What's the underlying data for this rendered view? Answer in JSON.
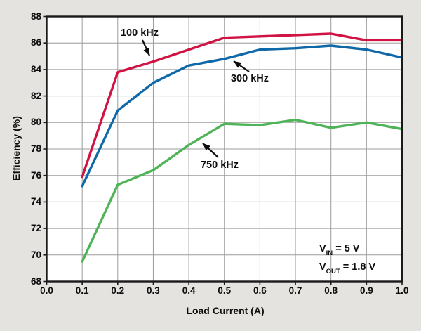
{
  "chart_data": {
    "type": "line",
    "title": "",
    "xlabel": "Load Current (A)",
    "ylabel": "Efficiency (%)",
    "xlim": [
      0.0,
      1.0
    ],
    "ylim": [
      68,
      88
    ],
    "grid": true,
    "legend_position": "inline-annotations-with-arrows",
    "x": [
      0.1,
      0.2,
      0.3,
      0.4,
      0.5,
      0.6,
      0.7,
      0.8,
      0.9,
      1.0
    ],
    "series": [
      {
        "name": "100 kHz",
        "color": "#d01343",
        "values": [
          75.9,
          83.8,
          84.6,
          85.5,
          86.4,
          86.5,
          86.6,
          86.7,
          86.2,
          86.2
        ]
      },
      {
        "name": "300 kHz",
        "color": "#0f69a9",
        "values": [
          75.2,
          80.9,
          83.0,
          84.3,
          84.8,
          85.5,
          85.6,
          85.8,
          85.5,
          84.9
        ]
      },
      {
        "name": "750 kHz",
        "color": "#4fb457",
        "values": [
          69.5,
          75.3,
          76.4,
          78.3,
          79.9,
          79.8,
          80.2,
          79.6,
          80.0,
          79.5
        ]
      }
    ],
    "xticks": [
      0.0,
      0.1,
      0.2,
      0.3,
      0.4,
      0.5,
      0.6,
      0.7,
      0.8,
      0.9,
      1.0
    ],
    "xtick_labels": [
      "0.0",
      "0.1",
      "0.2",
      "0.3",
      "0.4",
      "0.5",
      "0.6",
      "0.7",
      "0.8",
      "0.9",
      "1.0"
    ],
    "yticks": [
      68,
      70,
      72,
      74,
      76,
      78,
      80,
      82,
      84,
      86,
      88
    ],
    "ytick_labels": [
      "68",
      "70",
      "72",
      "74",
      "76",
      "78",
      "80",
      "82",
      "84",
      "86",
      "88"
    ]
  },
  "annotations": {
    "curve_100": "100 kHz",
    "curve_300": "300 kHz",
    "curve_750": "750 kHz",
    "vin": {
      "pre": "V",
      "sub": "IN",
      "post": " = 5 V"
    },
    "vout": {
      "pre": "V",
      "sub": "OUT",
      "post": " = 1.8 V"
    }
  },
  "colors": {
    "background": "#e5e3e0",
    "plot_background": "#ffffff",
    "gridline": "#9c9c9c",
    "frame": "#1a1a1a",
    "text": "#0d0d0d",
    "series_100khz": "#d01343",
    "series_300khz": "#0f69a9",
    "series_750khz": "#4fb457"
  }
}
